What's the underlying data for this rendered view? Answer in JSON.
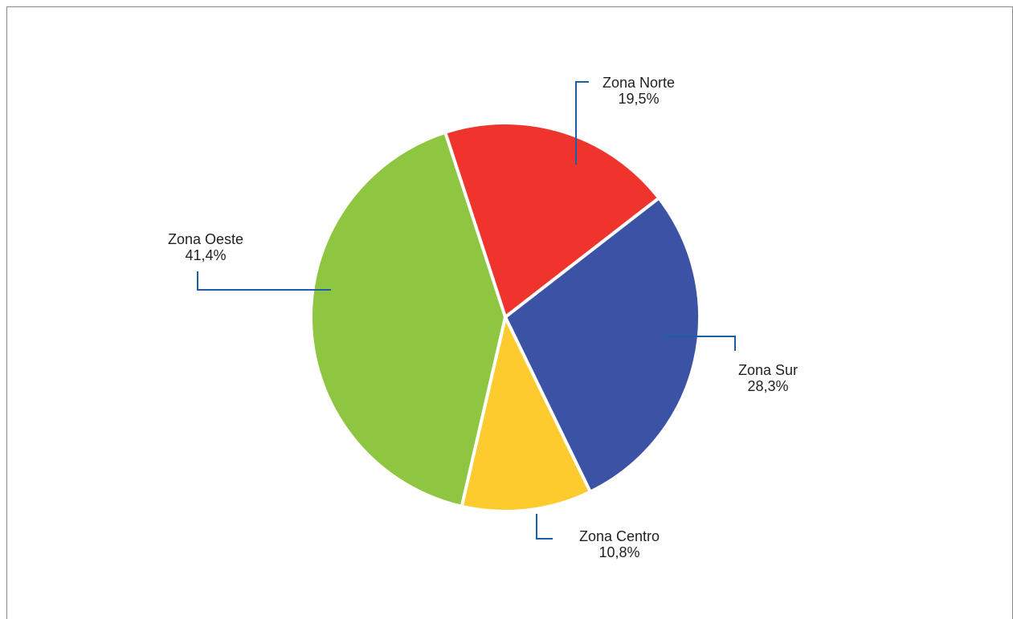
{
  "colors": {
    "leader": "#1a5fa8",
    "frame": "#8a8a8a",
    "background": "#ffffff"
  },
  "chart_data": {
    "type": "pie",
    "categories": [
      "Zona Norte",
      "Zona Sur",
      "Zona Centro",
      "Zona Oeste"
    ],
    "values": [
      19.5,
      28.3,
      10.8,
      41.4
    ],
    "value_labels": [
      "19,5%",
      "28,3%",
      "10,8%",
      "41,4%"
    ],
    "colors": [
      "#ee342c",
      "#3b52a5",
      "#fecb2f",
      "#8fc641"
    ],
    "start_angle_deg": -18,
    "direction": "clockwise",
    "legend": "none",
    "labels_position": "outside with leader lines"
  }
}
